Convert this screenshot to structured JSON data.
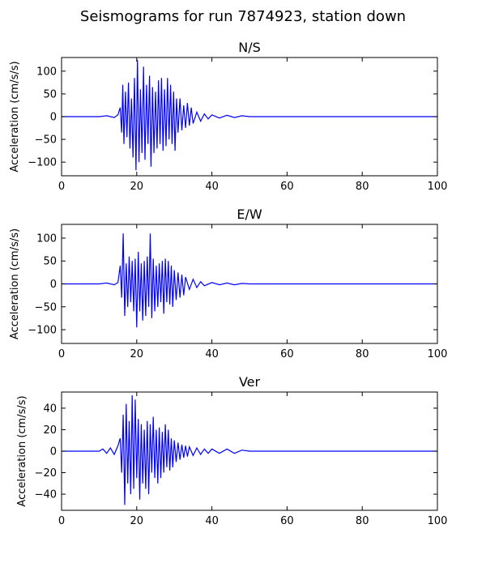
{
  "figure": {
    "title": "Seismograms for run 7874923, station down"
  },
  "colors": {
    "trace": "#0000ff",
    "axis": "#000000"
  },
  "chart_data": [
    {
      "type": "line",
      "title": "N/S",
      "xlabel": "",
      "ylabel": "Acceleration (cm/s/s)",
      "xlim": [
        0,
        100
      ],
      "ylim": [
        -130,
        130
      ],
      "xticks": [
        0,
        20,
        40,
        60,
        80,
        100
      ],
      "yticks": [
        -100,
        -50,
        0,
        50,
        100
      ],
      "grid": false,
      "series": [
        {
          "x": [
            0,
            10,
            12,
            14,
            15,
            15.6,
            16.0,
            16.3,
            16.6,
            17.0,
            17.4,
            17.8,
            18.2,
            18.6,
            19.0,
            19.4,
            19.8,
            20.2,
            20.6,
            21.0,
            21.4,
            21.8,
            22.2,
            22.6,
            23.0,
            23.4,
            23.8,
            24.2,
            24.6,
            25.0,
            25.4,
            25.8,
            26.2,
            26.6,
            27.0,
            27.4,
            27.8,
            28.2,
            28.6,
            29.0,
            29.4,
            29.8,
            30.2,
            30.6,
            31.0,
            31.5,
            32.0,
            32.5,
            33.0,
            33.5,
            34.0,
            34.5,
            35.0,
            36.0,
            37.0,
            38.0,
            39.0,
            40.0,
            42.0,
            44.0,
            46.0,
            48.0,
            50.0,
            60.0,
            80.0,
            100.0
          ],
          "y": [
            0,
            0,
            2,
            -2,
            4,
            20,
            -35,
            70,
            -60,
            55,
            -45,
            75,
            -70,
            40,
            -90,
            85,
            -118,
            125,
            -100,
            60,
            -80,
            110,
            -95,
            70,
            -60,
            90,
            -110,
            65,
            -80,
            55,
            -70,
            80,
            -60,
            85,
            -75,
            60,
            -65,
            85,
            -50,
            70,
            -60,
            55,
            -75,
            40,
            -35,
            40,
            -30,
            25,
            -25,
            30,
            -20,
            20,
            -15,
            10,
            -10,
            6,
            -5,
            4,
            -3,
            3,
            -2,
            2,
            0,
            0,
            0,
            0
          ]
        }
      ]
    },
    {
      "type": "line",
      "title": "E/W",
      "xlabel": "",
      "ylabel": "Acceleration (cm/s/s)",
      "xlim": [
        0,
        100
      ],
      "ylim": [
        -130,
        130
      ],
      "xticks": [
        0,
        20,
        40,
        60,
        80,
        100
      ],
      "yticks": [
        -100,
        -50,
        0,
        50,
        100
      ],
      "grid": false,
      "series": [
        {
          "x": [
            0,
            10,
            12,
            14,
            15,
            15.6,
            16.0,
            16.4,
            16.8,
            17.2,
            17.6,
            18.0,
            18.4,
            18.8,
            19.2,
            19.6,
            20.0,
            20.4,
            20.8,
            21.2,
            21.6,
            22.0,
            22.4,
            22.8,
            23.2,
            23.6,
            24.0,
            24.4,
            24.8,
            25.2,
            25.6,
            26.0,
            26.4,
            26.8,
            27.2,
            27.6,
            28.0,
            28.4,
            28.8,
            29.2,
            29.6,
            30.0,
            30.5,
            31.0,
            31.5,
            32.0,
            32.5,
            33.0,
            34.0,
            35.0,
            36.0,
            37.0,
            38.0,
            40.0,
            42.0,
            44.0,
            46.0,
            48.0,
            50.0,
            60.0,
            80.0,
            100.0
          ],
          "y": [
            0,
            0,
            2,
            -2,
            3,
            40,
            -30,
            110,
            -70,
            45,
            -50,
            60,
            -40,
            50,
            -60,
            55,
            -95,
            70,
            -60,
            45,
            -80,
            50,
            -70,
            60,
            -50,
            110,
            -75,
            55,
            -60,
            40,
            -50,
            45,
            -40,
            50,
            -65,
            55,
            -40,
            50,
            -45,
            40,
            -50,
            30,
            -35,
            25,
            -30,
            20,
            -25,
            15,
            -12,
            10,
            -8,
            5,
            -4,
            3,
            -2,
            2,
            -2,
            1,
            0,
            0,
            0,
            0
          ]
        }
      ]
    },
    {
      "type": "line",
      "title": "Ver",
      "xlabel": "",
      "ylabel": "Acceleration (cm/s/s)",
      "xlim": [
        0,
        100
      ],
      "ylim": [
        -55,
        55
      ],
      "xticks": [
        0,
        20,
        40,
        60,
        80,
        100
      ],
      "yticks": [
        -40,
        -20,
        0,
        20,
        40
      ],
      "grid": false,
      "series": [
        {
          "x": [
            0,
            10,
            11,
            12,
            13,
            14,
            15,
            15.6,
            16.0,
            16.4,
            16.8,
            17.2,
            17.6,
            18.0,
            18.4,
            18.8,
            19.2,
            19.6,
            20.0,
            20.4,
            20.8,
            21.2,
            21.6,
            22.0,
            22.4,
            22.8,
            23.2,
            23.6,
            24.0,
            24.4,
            24.8,
            25.2,
            25.6,
            26.0,
            26.4,
            26.8,
            27.2,
            27.6,
            28.0,
            28.4,
            28.8,
            29.2,
            29.6,
            30.0,
            30.5,
            31.0,
            31.5,
            32.0,
            32.5,
            33.0,
            33.5,
            34.0,
            35.0,
            36.0,
            37.0,
            38.0,
            39.0,
            40.0,
            42.0,
            44.0,
            46.0,
            48.0,
            50.0,
            55.0,
            60.0,
            80.0,
            100.0
          ],
          "y": [
            0,
            0,
            2,
            -2,
            3,
            -3,
            5,
            12,
            -20,
            34,
            -50,
            44,
            -30,
            28,
            -40,
            52,
            -35,
            48,
            -25,
            30,
            -45,
            25,
            -30,
            20,
            -35,
            28,
            -40,
            25,
            -20,
            32,
            -25,
            20,
            -30,
            22,
            -25,
            18,
            -20,
            25,
            -15,
            20,
            -18,
            12,
            -15,
            10,
            -10,
            8,
            -8,
            6,
            -6,
            5,
            -5,
            4,
            -4,
            3,
            -3,
            2,
            -2,
            2,
            -2,
            2,
            -2,
            1,
            0,
            0,
            0,
            0,
            0
          ]
        }
      ]
    }
  ]
}
